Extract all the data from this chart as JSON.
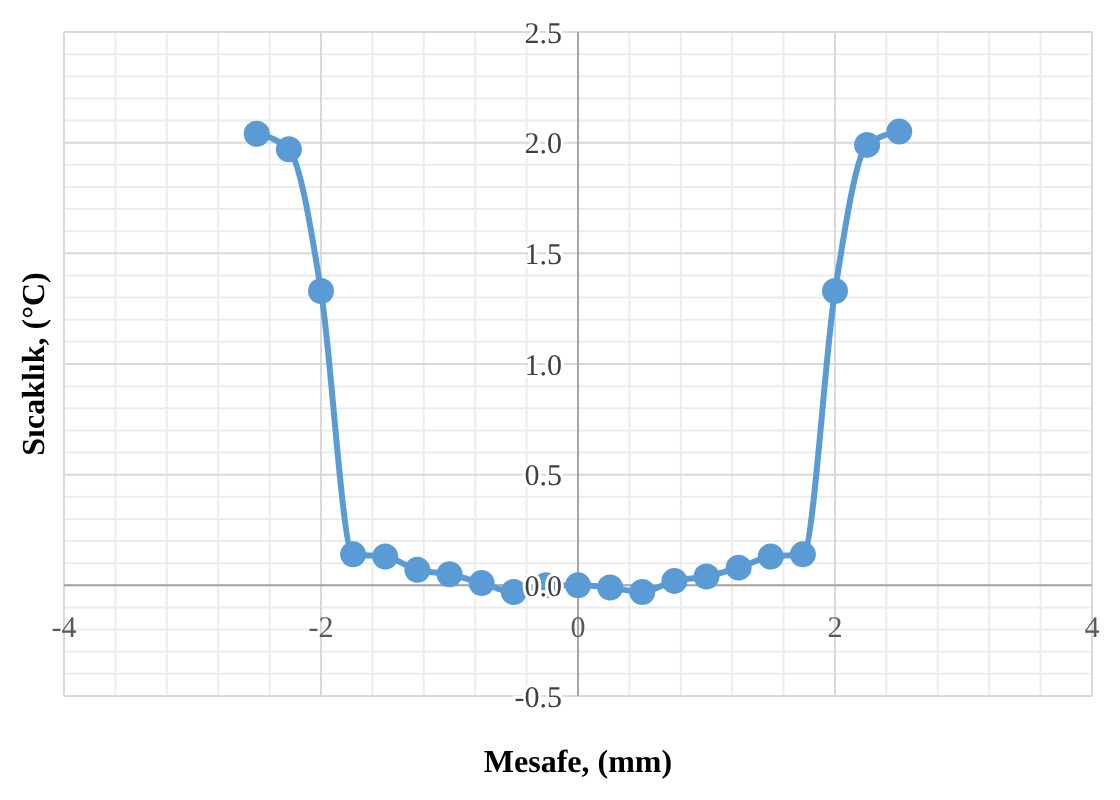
{
  "chart_data": {
    "type": "line",
    "xlabel": "Mesafe, (mm)",
    "ylabel": "Sıcaklık, (°C)",
    "x": [
      -2.5,
      -2.25,
      -2,
      -1.75,
      -1.5,
      -1.25,
      -1,
      -0.75,
      -0.5,
      -0.25,
      0,
      0.25,
      0.5,
      0.75,
      1,
      1.25,
      1.5,
      1.75,
      2,
      2.25,
      2.5
    ],
    "series": [
      {
        "color": "#5b9bd5",
        "values": [
          2.04,
          1.97,
          1.33,
          0.14,
          0.13,
          0.07,
          0.05,
          0.01,
          -0.03,
          0,
          0,
          -0.01,
          -0.03,
          0.02,
          0.04,
          0.08,
          0.13,
          0.14,
          1.33,
          1.99,
          2.05
        ]
      }
    ],
    "xlim": [
      -4,
      4
    ],
    "xticks": [
      -4,
      -2,
      0,
      2,
      4
    ],
    "ylim": [
      -0.5,
      2.5
    ],
    "yticks": [
      {
        "value": -0.5,
        "label": "-0.5"
      },
      {
        "value": 0,
        "label": "0.0"
      },
      {
        "value": 0.5,
        "label": "0.5"
      },
      {
        "value": 1,
        "label": "1.0"
      },
      {
        "value": 1.5,
        "label": "1.5"
      },
      {
        "value": 2,
        "label": "2.0"
      },
      {
        "value": 2.5,
        "label": "2.5"
      }
    ],
    "grid": true,
    "marker": "circle",
    "line_style": "solid"
  }
}
